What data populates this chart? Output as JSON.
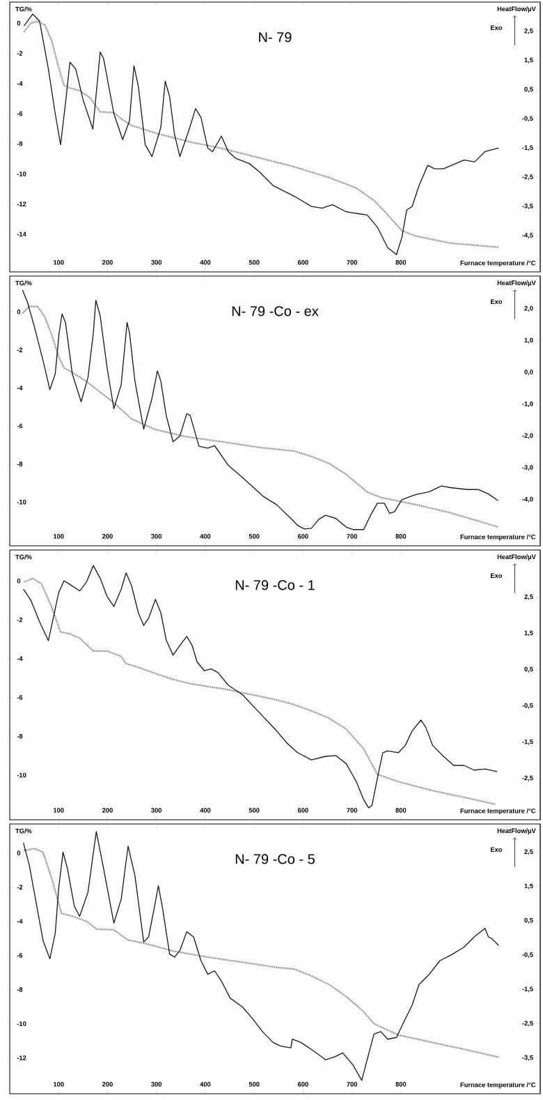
{
  "chart_data": [
    {
      "type": "line",
      "title": "N- 79",
      "xlabel": "Furnace temperature /°C",
      "ylabel": "TG/%",
      "y2label": "HeatFlow/µV",
      "annotations": [
        "Exo"
      ],
      "xlim": [
        0,
        1085
      ],
      "xticks": [
        100,
        200,
        300,
        400,
        500,
        600,
        700,
        800
      ],
      "ylim": [
        -16.5,
        1.4
      ],
      "yticks": [
        0,
        -2,
        -4,
        -6,
        -8,
        -10,
        -12,
        -14
      ],
      "y2lim": [
        -5.74,
        3.5
      ],
      "y2ticks": [
        {
          "value": 2.5,
          "label": "2,5"
        },
        {
          "value": 1.5,
          "label": "1,5"
        },
        {
          "value": 0.5,
          "label": "0,5"
        },
        {
          "value": -0.5,
          "label": "-0,5"
        },
        {
          "value": -1.5,
          "label": "-1,5"
        },
        {
          "value": -2.5,
          "label": "-2,5"
        },
        {
          "value": -3.5,
          "label": "-3,5"
        },
        {
          "value": -4.5,
          "label": "-4,5"
        }
      ],
      "series": [
        {
          "color": "#8c8c8c",
          "line_style": "dotted",
          "x": [
            29,
            43,
            57,
            72,
            86,
            100,
            111,
            121,
            143,
            164,
            185,
            213,
            228,
            249,
            298,
            369,
            440,
            511,
            582,
            653,
            709,
            745,
            773,
            802,
            830,
            901,
            1000
          ],
          "values": [
            -0.59,
            0,
            0.12,
            -0.12,
            -1.18,
            -2.94,
            -4.12,
            -4.28,
            -4.47,
            -4.94,
            -5.88,
            -5.93,
            -6.35,
            -6.78,
            -7.29,
            -7.88,
            -8.35,
            -8.94,
            -9.53,
            -10.24,
            -10.94,
            -11.76,
            -12.71,
            -13.76,
            -14.12,
            -14.59,
            -14.87
          ]
        },
        {
          "axis": "y2",
          "color": "#1a1a1a",
          "line_style": "solid",
          "x": [
            29,
            47,
            61,
            79,
            93,
            104,
            114,
            123,
            135,
            150,
            170,
            185,
            192,
            213,
            231,
            245,
            254,
            263,
            277,
            291,
            309,
            318,
            327,
            337,
            348,
            366,
            380,
            391,
            405,
            415,
            433,
            447,
            462,
            490,
            511,
            539,
            582,
            617,
            639,
            660,
            688,
            710,
            731,
            752,
            773,
            791,
            802,
            812,
            823,
            837,
            855,
            869,
            887,
            929,
            951,
            972,
            1000
          ],
          "values": [
            2.68,
            3.09,
            2.85,
            1.21,
            -0.32,
            -1.38,
            0.03,
            1.44,
            1.21,
            0.15,
            -0.85,
            1.79,
            1.56,
            -0.32,
            -1.21,
            -0.56,
            1.32,
            0.62,
            -1.38,
            -1.79,
            -0.79,
            0.79,
            0.26,
            -1.03,
            -1.79,
            -0.91,
            -0.15,
            -0.44,
            -1.5,
            -1.62,
            -1.09,
            -1.62,
            -1.85,
            -2.03,
            -2.32,
            -2.79,
            -3.15,
            -3.5,
            -3.56,
            -3.44,
            -3.68,
            -3.74,
            -3.79,
            -4.21,
            -4.91,
            -5.15,
            -4.56,
            -3.62,
            -3.5,
            -2.79,
            -2.09,
            -2.21,
            -2.21,
            -1.91,
            -1.97,
            -1.62,
            -1.5
          ]
        }
      ]
    },
    {
      "type": "line",
      "title": "N- 79 -Co - ex",
      "xlabel": "Furnace temperature /°C",
      "ylabel": "TG/%",
      "y2label": "HeatFlow/µV",
      "annotations": [
        "Exo"
      ],
      "xlim": [
        0,
        1085
      ],
      "xticks": [
        100,
        200,
        300,
        400,
        500,
        600,
        700,
        800
      ],
      "ylim": [
        -12.3,
        1.88
      ],
      "yticks": [
        0,
        -2,
        -4,
        -6,
        -8,
        -10
      ],
      "y2lim": [
        -5.45,
        3.03
      ],
      "y2ticks": [
        {
          "value": 2,
          "label": "2,0"
        },
        {
          "value": 1,
          "label": "1,0"
        },
        {
          "value": 0,
          "label": "0,0"
        },
        {
          "value": -1,
          "label": "-1,0"
        },
        {
          "value": -2,
          "label": "-2,0"
        },
        {
          "value": -3,
          "label": "-3,0"
        },
        {
          "value": -4,
          "label": "-4,0"
        }
      ],
      "series": [
        {
          "color": "#8c8c8c",
          "line_style": "dotted",
          "x": [
            26,
            40,
            57,
            72,
            86,
            100,
            111,
            128,
            157,
            185,
            213,
            249,
            298,
            362,
            440,
            511,
            582,
            617,
            653,
            688,
            731,
            759,
            830,
            901,
            999
          ],
          "values": [
            -0.09,
            0.28,
            0.28,
            -0.28,
            -1.22,
            -2.35,
            -2.95,
            -3.19,
            -3.66,
            -4.22,
            -4.78,
            -5.63,
            -6.19,
            -6.57,
            -6.85,
            -7.13,
            -7.32,
            -7.6,
            -7.97,
            -8.54,
            -9.47,
            -9.76,
            -10.13,
            -10.56,
            -11.31
          ]
        },
        {
          "axis": "y2",
          "color": "#1a1a1a",
          "line_style": "solid",
          "x": [
            26,
            36,
            50,
            68,
            82,
            93,
            101,
            107,
            114,
            128,
            146,
            160,
            171,
            176,
            185,
            199,
            213,
            228,
            240,
            245,
            256,
            274,
            291,
            302,
            309,
            320,
            334,
            348,
            362,
            369,
            387,
            405,
            419,
            447,
            476,
            518,
            546,
            575,
            589,
            603,
            617,
            632,
            646,
            667,
            688,
            702,
            724,
            738,
            752,
            766,
            777,
            787,
            802,
            816,
            830,
            858,
            883,
            901,
            936,
            958,
            979,
            999
          ],
          "values": [
            2.59,
            2.22,
            1.46,
            0.38,
            -0.54,
            -0.05,
            1.24,
            1.84,
            1.57,
            -0.05,
            -0.92,
            -0.16,
            1.24,
            2.27,
            1.78,
            0.16,
            -1.14,
            -0.38,
            1.57,
            1.24,
            -0.27,
            -1.78,
            -0.81,
            0.05,
            -0.27,
            -1.35,
            -2.18,
            -2.0,
            -1.3,
            -1.35,
            -2.32,
            -2.38,
            -2.3,
            -2.92,
            -3.3,
            -3.89,
            -4.16,
            -4.59,
            -4.81,
            -4.92,
            -4.9,
            -4.62,
            -4.49,
            -4.59,
            -4.86,
            -4.94,
            -4.94,
            -4.49,
            -4.11,
            -4.11,
            -4.43,
            -4.38,
            -4.0,
            -3.92,
            -3.84,
            -3.75,
            -3.57,
            -3.62,
            -3.68,
            -3.68,
            -3.82,
            -4.03
          ]
        }
      ]
    },
    {
      "type": "line",
      "title": "N- 79 -Co - 1",
      "xlabel": "Furnace temperature /°C",
      "ylabel": "TG/%",
      "y2label": "HeatFlow/µV",
      "annotations": [
        "Exo"
      ],
      "xlim": [
        0,
        1085
      ],
      "xticks": [
        100,
        200,
        300,
        400,
        500,
        600,
        700,
        800
      ],
      "ylim": [
        -12.3,
        1.59
      ],
      "yticks": [
        0,
        -2,
        -4,
        -6,
        -8,
        -10
      ],
      "y2lim": [
        -3.64,
        3.8
      ],
      "y2ticks": [
        {
          "value": 2.5,
          "label": "2,5"
        },
        {
          "value": 1.5,
          "label": "1,5"
        },
        {
          "value": 0.5,
          "label": "0,5"
        },
        {
          "value": -0.5,
          "label": "-0,5"
        },
        {
          "value": -1.5,
          "label": "-1,5"
        },
        {
          "value": -2.5,
          "label": "-2,5"
        }
      ],
      "series": [
        {
          "color": "#8c8c8c",
          "line_style": "dotted",
          "x": [
            29,
            47,
            65,
            86,
            104,
            121,
            143,
            171,
            199,
            228,
            238,
            263,
            298,
            334,
            369,
            405,
            440,
            476,
            511,
            546,
            575,
            617,
            653,
            688,
            724,
            752,
            795,
            865,
            936,
            993
          ],
          "values": [
            -0.06,
            0.13,
            -0.15,
            -1.36,
            -2.64,
            -2.71,
            -2.95,
            -3.61,
            -3.61,
            -3.89,
            -4.26,
            -4.45,
            -4.77,
            -5.07,
            -5.29,
            -5.44,
            -5.57,
            -5.76,
            -5.94,
            -6.13,
            -6.32,
            -6.69,
            -7.07,
            -7.63,
            -8.65,
            -9.96,
            -10.34,
            -10.8,
            -11.18,
            -11.5
          ]
        },
        {
          "axis": "y2",
          "color": "#1a1a1a",
          "line_style": "solid",
          "x": [
            28,
            43,
            61,
            79,
            89,
            100,
            111,
            121,
            143,
            157,
            171,
            185,
            199,
            213,
            228,
            238,
            249,
            263,
            274,
            284,
            298,
            309,
            320,
            334,
            348,
            362,
            373,
            383,
            398,
            412,
            426,
            447,
            476,
            504,
            532,
            546,
            568,
            589,
            617,
            646,
            667,
            688,
            709,
            724,
            734,
            741,
            752,
            763,
            773,
            795,
            809,
            823,
            841,
            851,
            865,
            887,
            908,
            929,
            950,
            972,
            997
          ],
          "values": [
            2.72,
            2.42,
            1.82,
            1.3,
            1.92,
            2.62,
            2.95,
            2.87,
            2.67,
            2.92,
            3.37,
            3.02,
            2.52,
            2.24,
            2.72,
            3.17,
            2.82,
            2.07,
            1.72,
            1.92,
            2.44,
            2.07,
            1.32,
            0.9,
            1.17,
            1.42,
            1.17,
            0.72,
            0.47,
            0.52,
            0.42,
            0.07,
            -0.19,
            -0.59,
            -0.99,
            -1.19,
            -1.54,
            -1.79,
            -1.99,
            -1.89,
            -1.87,
            -2.09,
            -2.59,
            -3.09,
            -3.31,
            -3.24,
            -2.49,
            -1.79,
            -1.74,
            -1.79,
            -1.59,
            -1.19,
            -0.89,
            -1.09,
            -1.59,
            -1.89,
            -2.14,
            -2.14,
            -2.27,
            -2.24,
            -2.31
          ]
        }
      ]
    },
    {
      "type": "line",
      "title": "N- 79 -Co - 5",
      "xlabel": "Furnace temperature /°C",
      "ylabel": "TG/%",
      "y2label": "HeatFlow/µV",
      "annotations": [
        "Exo"
      ],
      "xlim": [
        0,
        1085
      ],
      "xticks": [
        100,
        200,
        300,
        400,
        500,
        600,
        700,
        800
      ],
      "ylim": [
        -14.1,
        1.7
      ],
      "yticks": [
        0,
        -2,
        -4,
        -6,
        -8,
        -10,
        -12
      ],
      "y2lim": [
        -4.54,
        3.32
      ],
      "y2ticks": [
        {
          "value": 2.5,
          "label": "2,5"
        },
        {
          "value": 1.5,
          "label": "1,5"
        },
        {
          "value": 0.5,
          "label": "0,5"
        },
        {
          "value": -0.5,
          "label": "-0,5"
        },
        {
          "value": -1.5,
          "label": "-1,5"
        },
        {
          "value": -2.5,
          "label": "-2,5"
        },
        {
          "value": -3.5,
          "label": "-3,5"
        }
      ],
      "series": [
        {
          "color": "#8c8c8c",
          "line_style": "dotted",
          "x": [
            29,
            50,
            68,
            86,
            106,
            128,
            157,
            178,
            213,
            242,
            277,
            334,
            405,
            476,
            546,
            582,
            617,
            653,
            688,
            724,
            745,
            795,
            865,
            936,
            1000
          ],
          "values": [
            0.14,
            0.26,
            0.06,
            -1.5,
            -3.54,
            -3.7,
            -4.0,
            -4.46,
            -4.5,
            -5.1,
            -5.3,
            -5.74,
            -6.1,
            -6.4,
            -6.7,
            -6.8,
            -7.2,
            -7.7,
            -8.4,
            -9.3,
            -10.0,
            -10.66,
            -11.1,
            -11.54,
            -11.96
          ]
        },
        {
          "axis": "y2",
          "color": "#1a1a1a",
          "line_style": "solid",
          "x": [
            28,
            40,
            54,
            68,
            82,
            93,
            100,
            109,
            118,
            132,
            143,
            160,
            177,
            192,
            213,
            228,
            242,
            256,
            274,
            284,
            295,
            304,
            313,
            327,
            337,
            348,
            362,
            376,
            391,
            405,
            419,
            433,
            451,
            476,
            497,
            518,
            539,
            554,
            575,
            578,
            596,
            617,
            646,
            667,
            681,
            702,
            720,
            731,
            745,
            759,
            773,
            791,
            809,
            823,
            837,
            858,
            880,
            901,
            929,
            950,
            972,
            979,
            986,
            1000
          ],
          "values": [
            2.77,
            2.12,
            1.03,
            -0.07,
            -0.61,
            0.13,
            1.43,
            2.5,
            2.02,
            0.93,
            0.63,
            1.33,
            3.1,
            2.02,
            0.43,
            1.13,
            2.67,
            1.82,
            -0.12,
            0.03,
            0.83,
            1.52,
            0.83,
            -0.47,
            -0.56,
            -0.37,
            0.18,
            0.03,
            -0.66,
            -1.06,
            -0.96,
            -1.26,
            -1.76,
            -2.01,
            -2.36,
            -2.75,
            -3.05,
            -3.15,
            -3.2,
            -2.95,
            -3.05,
            -3.25,
            -3.55,
            -3.45,
            -3.35,
            -3.7,
            -4.15,
            -3.55,
            -2.8,
            -2.73,
            -2.95,
            -2.9,
            -2.36,
            -1.96,
            -1.36,
            -1.06,
            -0.66,
            -0.51,
            -0.27,
            0.03,
            0.28,
            0.03,
            -0.02,
            -0.22
          ]
        }
      ]
    }
  ]
}
